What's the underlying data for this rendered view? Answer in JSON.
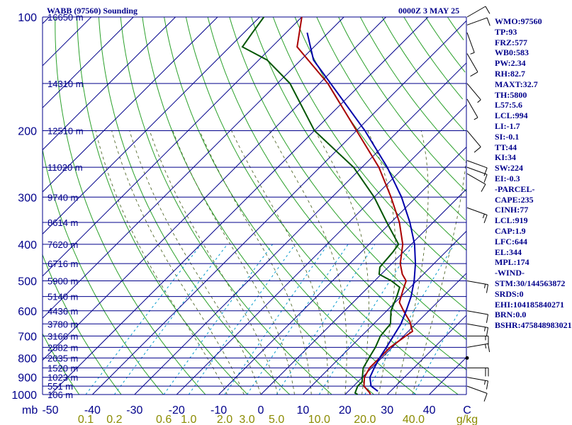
{
  "header": {
    "station": "WABB (97560) Sounding",
    "time": "0000Z  3 MAY 25"
  },
  "indices": [
    "WMO:97560",
    "TP:93",
    "FRZ:577",
    "WB0:583",
    "PW:2.34",
    "RH:82.7",
    "MAXT:32.7",
    "TH:5800",
    "L57:5.6",
    "LCL:994",
    "LI:-1.7",
    "SI:-0.1",
    "TT:44",
    "KI:34",
    "SW:224",
    "EI:-0.3",
    "-PARCEL-",
    "CAPE:235",
    "CINH:77",
    "LCL:919",
    "CAP:1.9",
    "LFC:644",
    "EL:344",
    "MPL:174",
    "-WIND-",
    "STM:30/144563872",
    "SRDS:0",
    "EHI:104185840271",
    "BRN:0.0",
    "BSHR:475848983021"
  ],
  "colors": {
    "axis": "#00008b",
    "isobar": "#00008b",
    "isotherm": "#00008b",
    "dry_adiabat": "#2aa02a",
    "moist_adiabat": "#556b2f",
    "mixing_ratio": "#0099cc",
    "temperature": "#aa0000",
    "dewpoint": "#005500",
    "parcel": "#0000aa"
  },
  "chart_data": {
    "type": "line",
    "title": "WABB (97560) Sounding",
    "ylabel": "mb",
    "xlabel": "C",
    "mixing_ratio_unit": "g/kg",
    "y_scale": "log",
    "ylim": [
      1000,
      100
    ],
    "xlim": [
      -50,
      50
    ],
    "pressure_ticks": [
      100,
      200,
      300,
      400,
      500,
      600,
      700,
      800,
      900,
      1000
    ],
    "temperature_ticks": [
      -50,
      -40,
      -30,
      -20,
      -10,
      0,
      10,
      20,
      30,
      40
    ],
    "temperature_tick_labels": [
      "-50",
      "-40",
      "-30",
      "-20",
      "-10",
      "0",
      "10",
      "20",
      "30",
      "40"
    ],
    "mixing_ratio_labels": [
      {
        "text": "0.1",
        "value": 0.1
      },
      {
        "text": "0.2",
        "value": 0.2
      },
      {
        "text": "0.6",
        "value": 0.6
      },
      {
        "text": "1.0",
        "value": 1.0
      },
      {
        "text": "2.0",
        "value": 2.0
      },
      {
        "text": "3.0",
        "value": 3.0
      },
      {
        "text": "5.0",
        "value": 5.0
      },
      {
        "text": "10.0",
        "value": 10.0
      },
      {
        "text": "20.0",
        "value": 20.0
      },
      {
        "text": "40.0",
        "value": 40.0
      }
    ],
    "height_labels": [
      {
        "p": 100,
        "text": "16650 m"
      },
      {
        "p": 150,
        "text": "14310 m"
      },
      {
        "p": 200,
        "text": "12510 m"
      },
      {
        "p": 250,
        "text": "11020 m"
      },
      {
        "p": 300,
        "text": "9740 m"
      },
      {
        "p": 350,
        "text": "8614 m"
      },
      {
        "p": 400,
        "text": "7620 m"
      },
      {
        "p": 450,
        "text": "6716 m"
      },
      {
        "p": 500,
        "text": "5900 m"
      },
      {
        "p": 550,
        "text": "5140 m"
      },
      {
        "p": 600,
        "text": "4436 m"
      },
      {
        "p": 650,
        "text": "3780 m"
      },
      {
        "p": 700,
        "text": "3166 m"
      },
      {
        "p": 750,
        "text": "2582 m"
      },
      {
        "p": 800,
        "text": "2035 m"
      },
      {
        "p": 850,
        "text": "1520 m"
      },
      {
        "p": 900,
        "text": "1023 m"
      },
      {
        "p": 950,
        "text": "551 m"
      },
      {
        "p": 1000,
        "text": "106 m"
      }
    ],
    "grid": true,
    "skew_deg_per_decade": 90,
    "series": [
      {
        "key": "temperature",
        "points": [
          [
            1000,
            26
          ],
          [
            990,
            25.5
          ],
          [
            970,
            24
          ],
          [
            950,
            22.5
          ],
          [
            925,
            21.5
          ],
          [
            900,
            20.5
          ],
          [
            850,
            19.5
          ],
          [
            800,
            19.5
          ],
          [
            750,
            19.5
          ],
          [
            700,
            20.5
          ],
          [
            680,
            21
          ],
          [
            660,
            19.5
          ],
          [
            640,
            18
          ],
          [
            620,
            16
          ],
          [
            600,
            14
          ],
          [
            570,
            11
          ],
          [
            530,
            9
          ],
          [
            500,
            7.5
          ],
          [
            480,
            5
          ],
          [
            450,
            2
          ],
          [
            400,
            -2
          ],
          [
            350,
            -8
          ],
          [
            300,
            -16
          ],
          [
            250,
            -26
          ],
          [
            200,
            -40
          ],
          [
            150,
            -58
          ],
          [
            120,
            -74
          ],
          [
            100,
            -80
          ]
        ]
      },
      {
        "key": "dewpoint",
        "points": [
          [
            1000,
            23
          ],
          [
            990,
            22
          ],
          [
            970,
            21.5
          ],
          [
            950,
            21
          ],
          [
            925,
            21
          ],
          [
            900,
            20
          ],
          [
            850,
            18
          ],
          [
            800,
            17
          ],
          [
            750,
            16
          ],
          [
            700,
            14.5
          ],
          [
            650,
            14
          ],
          [
            600,
            11
          ],
          [
            550,
            9
          ],
          [
            520,
            7.5
          ],
          [
            500,
            4
          ],
          [
            480,
            -0.5
          ],
          [
            460,
            -2
          ],
          [
            420,
            -2.5
          ],
          [
            400,
            -3
          ],
          [
            350,
            -11
          ],
          [
            300,
            -20
          ],
          [
            250,
            -32
          ],
          [
            200,
            -50
          ],
          [
            150,
            -67
          ],
          [
            130,
            -78
          ],
          [
            120,
            -87
          ],
          [
            110,
            -88
          ],
          [
            100,
            -89
          ]
        ]
      },
      {
        "key": "parcel",
        "points": [
          [
            980,
            27
          ],
          [
            950,
            24.2
          ],
          [
            925,
            23
          ],
          [
            900,
            21.8
          ],
          [
            850,
            20.6
          ],
          [
            800,
            19.5
          ],
          [
            750,
            18.6
          ],
          [
            700,
            17.6
          ],
          [
            650,
            16.5
          ],
          [
            600,
            14.6
          ],
          [
            550,
            12.4
          ],
          [
            500,
            9.4
          ],
          [
            450,
            5.6
          ],
          [
            400,
            0.8
          ],
          [
            350,
            -5.5
          ],
          [
            300,
            -13.5
          ],
          [
            250,
            -24
          ],
          [
            200,
            -38
          ],
          [
            160,
            -53
          ],
          [
            130,
            -67
          ],
          [
            110,
            -75
          ]
        ]
      }
    ],
    "wind_barbs": [
      {
        "p": 100,
        "dir": 60,
        "spd": 10
      },
      {
        "p": 105,
        "dir": 70,
        "spd": 10
      },
      {
        "p": 110,
        "dir": 160,
        "spd": 5
      },
      {
        "p": 125,
        "dir": 150,
        "spd": 10
      },
      {
        "p": 150,
        "dir": 140,
        "spd": 5
      },
      {
        "p": 165,
        "dir": 150,
        "spd": 5
      },
      {
        "p": 200,
        "dir": 140,
        "spd": 10
      },
      {
        "p": 240,
        "dir": 110,
        "spd": 10
      },
      {
        "p": 250,
        "dir": 110,
        "spd": 10
      },
      {
        "p": 260,
        "dir": 120,
        "spd": 10
      },
      {
        "p": 320,
        "dir": 110,
        "spd": 15
      },
      {
        "p": 500,
        "dir": 100,
        "spd": 15
      },
      {
        "p": 600,
        "dir": 100,
        "spd": 10
      },
      {
        "p": 650,
        "dir": 100,
        "spd": 15
      },
      {
        "p": 700,
        "dir": 90,
        "spd": 15
      },
      {
        "p": 750,
        "dir": 80,
        "spd": 15
      },
      {
        "p": 800,
        "dir": 0,
        "spd": 0
      },
      {
        "p": 850,
        "dir": 90,
        "spd": 20
      },
      {
        "p": 900,
        "dir": 100,
        "spd": 15
      },
      {
        "p": 950,
        "dir": 110,
        "spd": 10
      }
    ]
  }
}
